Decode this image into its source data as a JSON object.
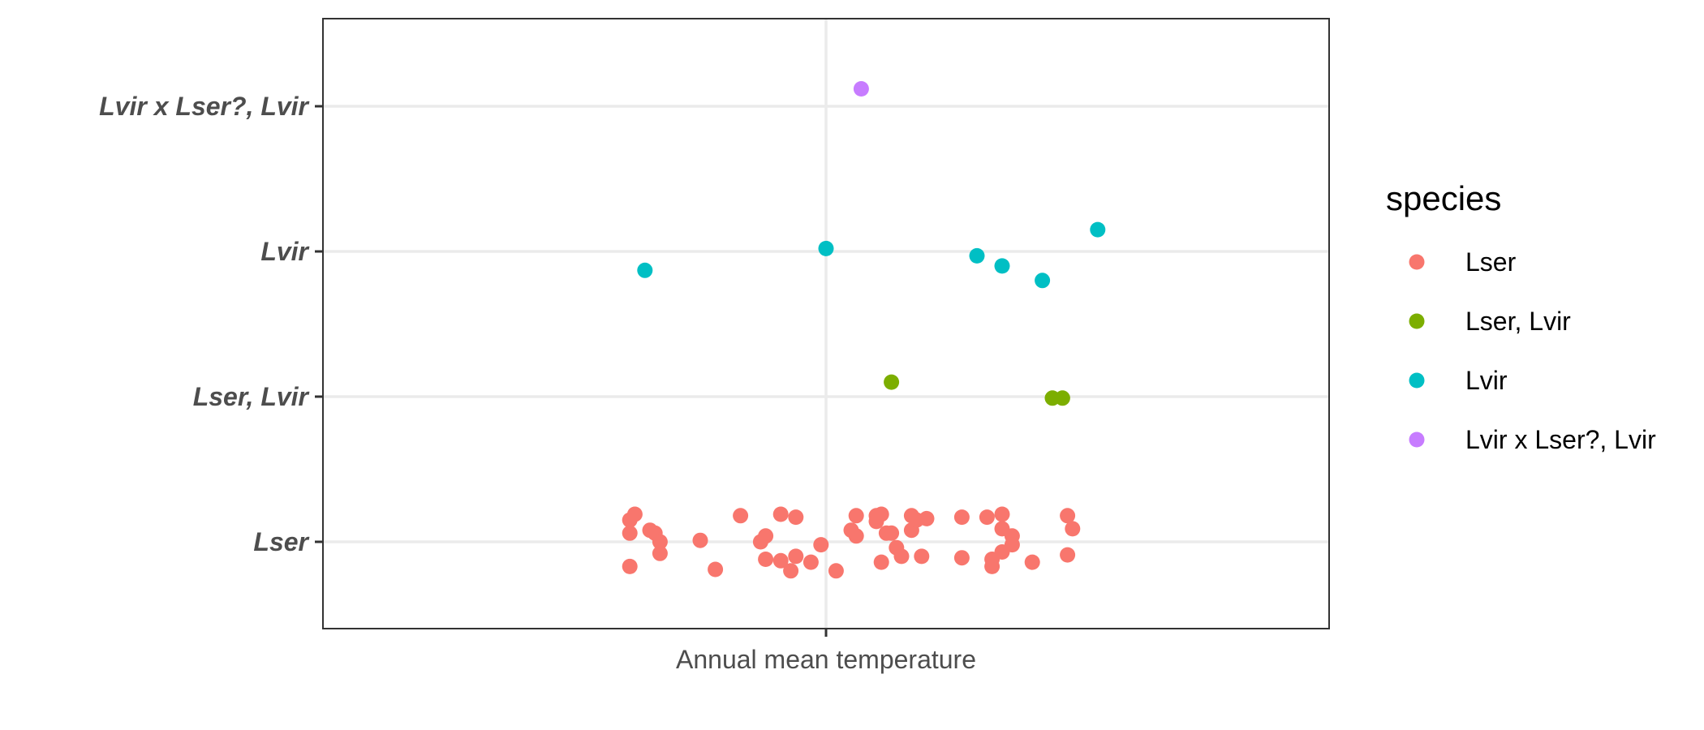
{
  "chart_data": {
    "type": "scatter",
    "title": "",
    "xlabel": "",
    "ylabel": "",
    "x_ticks": [
      "Annual mean temperature"
    ],
    "y_categories": [
      "Lser",
      "Lser, Lvir",
      "Lvir",
      "Lvir x Lser?, Lvir"
    ],
    "grid": true,
    "legend": {
      "title": "species",
      "position": "right",
      "entries": [
        {
          "label": "Lser",
          "color": "#F8766D"
        },
        {
          "label": "Lser, Lvir",
          "color": "#7CAE00"
        },
        {
          "label": "Lvir",
          "color": "#00BFC4"
        },
        {
          "label": "Lvir x Lser?, Lvir",
          "color": "#C77CFF"
        }
      ]
    },
    "jitter_note_free": true,
    "series": [
      {
        "name": "Lser",
        "category": "Lser",
        "points": [
          [
            -0.39,
            0.15
          ],
          [
            -0.38,
            0.19
          ],
          [
            -0.39,
            0.06
          ],
          [
            -0.35,
            0.08
          ],
          [
            -0.34,
            0.06
          ],
          [
            -0.33,
            0.0
          ],
          [
            -0.33,
            -0.08
          ],
          [
            -0.39,
            -0.17
          ],
          [
            -0.25,
            0.01
          ],
          [
            -0.22,
            -0.19
          ],
          [
            -0.17,
            0.18
          ],
          [
            -0.13,
            0.0
          ],
          [
            -0.12,
            0.04
          ],
          [
            -0.12,
            -0.12
          ],
          [
            -0.09,
            0.19
          ],
          [
            -0.09,
            -0.13
          ],
          [
            -0.07,
            -0.2
          ],
          [
            -0.06,
            0.17
          ],
          [
            -0.06,
            -0.1
          ],
          [
            -0.03,
            -0.14
          ],
          [
            -0.01,
            -0.02
          ],
          [
            0.02,
            -0.2
          ],
          [
            0.05,
            0.08
          ],
          [
            0.06,
            0.18
          ],
          [
            0.06,
            0.04
          ],
          [
            0.1,
            0.14
          ],
          [
            0.1,
            0.18
          ],
          [
            0.11,
            0.19
          ],
          [
            0.11,
            -0.14
          ],
          [
            0.12,
            0.06
          ],
          [
            0.13,
            0.06
          ],
          [
            0.14,
            -0.04
          ],
          [
            0.15,
            -0.1
          ],
          [
            0.17,
            0.18
          ],
          [
            0.17,
            0.08
          ],
          [
            0.18,
            0.15
          ],
          [
            0.19,
            -0.1
          ],
          [
            0.2,
            0.16
          ],
          [
            0.27,
            0.17
          ],
          [
            0.27,
            -0.11
          ],
          [
            0.32,
            0.17
          ],
          [
            0.33,
            -0.12
          ],
          [
            0.33,
            -0.17
          ],
          [
            0.35,
            0.19
          ],
          [
            0.35,
            0.09
          ],
          [
            0.35,
            -0.07
          ],
          [
            0.37,
            0.04
          ],
          [
            0.37,
            -0.02
          ],
          [
            0.41,
            -0.14
          ],
          [
            0.48,
            0.18
          ],
          [
            0.48,
            -0.09
          ],
          [
            0.49,
            0.09
          ]
        ]
      },
      {
        "name": "Lser, Lvir",
        "category": "Lser, Lvir",
        "points": [
          [
            0.13,
            0.1
          ],
          [
            0.45,
            -0.01
          ],
          [
            0.47,
            -0.01
          ]
        ]
      },
      {
        "name": "Lvir",
        "category": "Lvir",
        "points": [
          [
            -0.36,
            -0.13
          ],
          [
            0.0,
            0.02
          ],
          [
            0.3,
            -0.03
          ],
          [
            0.35,
            -0.1
          ],
          [
            0.43,
            -0.2
          ],
          [
            0.54,
            0.15
          ]
        ]
      },
      {
        "name": "Lvir x Lser?, Lvir",
        "category": "Lvir x Lser?, Lvir",
        "points": [
          [
            0.07,
            0.12
          ]
        ]
      }
    ]
  }
}
